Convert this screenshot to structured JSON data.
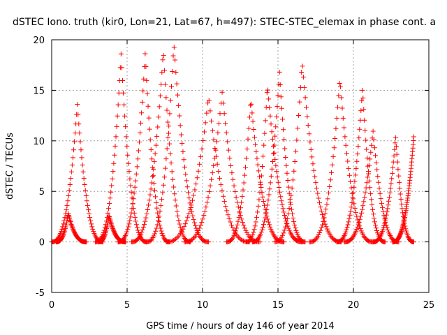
{
  "chart_data": {
    "type": "scatter",
    "title": "dSTEC Iono. truth (kir0, Lon=21, Lat=67, h=497): STEC-STEC_elemax in phase cont. a",
    "xlabel": "GPS time / hours of day 146 of year 2014",
    "ylabel": "dSTEC  / TECUs",
    "xlim": [
      0,
      25
    ],
    "ylim": [
      -5,
      20
    ],
    "xticks": [
      "0",
      "5",
      "10",
      "15",
      "20",
      "25"
    ],
    "yticks": [
      "-5",
      "0",
      "5",
      "10",
      "15",
      "20"
    ],
    "grid": true,
    "marker": "plus",
    "color": "#ff0000",
    "series": [
      {
        "arcs": [
          {
            "start": 0.0,
            "peak": 1.7,
            "end": 3.4,
            "peak_value": 13.6
          },
          {
            "start": 0.3,
            "peak": 1.1,
            "end": 2.3,
            "peak_value": 2.8
          },
          {
            "start": 2.9,
            "peak": 4.6,
            "end": 6.3,
            "peak_value": 18.6
          },
          {
            "start": 3.1,
            "peak": 3.8,
            "end": 4.9,
            "peak_value": 2.6
          },
          {
            "start": 4.4,
            "peak": 6.2,
            "end": 7.8,
            "peak_value": 18.7
          },
          {
            "start": 5.3,
            "peak": 7.4,
            "end": 9.2,
            "peak_value": 18.9
          },
          {
            "start": 6.3,
            "peak": 8.1,
            "end": 10.4,
            "peak_value": 19.6
          },
          {
            "start": 7.6,
            "peak": 10.4,
            "end": 13.1,
            "peak_value": 14.4
          },
          {
            "start": 8.8,
            "peak": 11.3,
            "end": 13.8,
            "peak_value": 14.8
          },
          {
            "start": 11.6,
            "peak": 13.2,
            "end": 15.4,
            "peak_value": 14.1
          },
          {
            "start": 12.9,
            "peak": 14.3,
            "end": 16.6,
            "peak_value": 15.5
          },
          {
            "start": 13.3,
            "peak": 15.1,
            "end": 16.8,
            "peak_value": 16.8
          },
          {
            "start": 14.8,
            "peak": 16.6,
            "end": 19.2,
            "peak_value": 17.8
          },
          {
            "start": 17.1,
            "peak": 19.1,
            "end": 21.3,
            "peak_value": 16.1
          },
          {
            "start": 18.9,
            "peak": 20.6,
            "end": 22.1,
            "peak_value": 15.2
          },
          {
            "start": 19.4,
            "peak": 21.3,
            "end": 23.0,
            "peak_value": 11.0
          },
          {
            "start": 21.3,
            "peak": 22.8,
            "end": 24.0,
            "peak_value": 10.4
          },
          {
            "start": 22.6,
            "peak": 24.0,
            "end": 24.0,
            "peak_value": 10.4
          }
        ]
      }
    ]
  }
}
